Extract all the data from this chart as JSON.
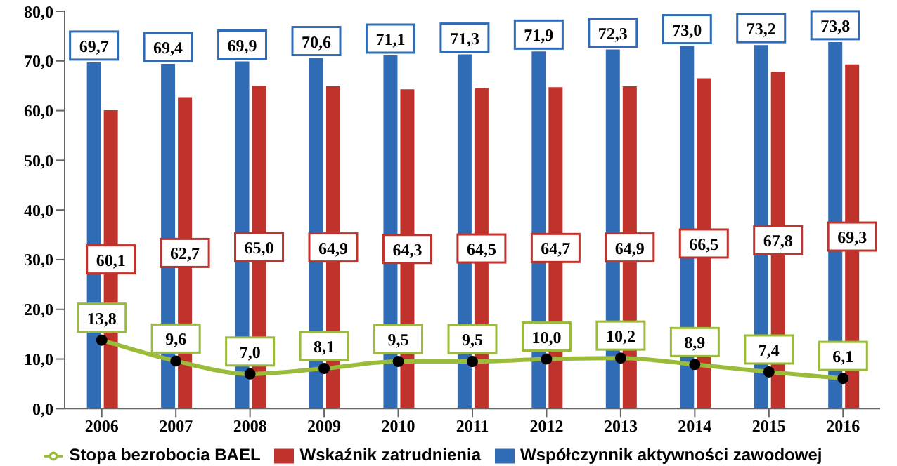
{
  "chart_data": {
    "type": "bar",
    "categories": [
      "2006",
      "2007",
      "2008",
      "2009",
      "2010",
      "2011",
      "2012",
      "2013",
      "2014",
      "2015",
      "2016"
    ],
    "series": [
      {
        "name": "Współczynnik aktywności zawodowej",
        "color": "#2f6cb5",
        "values": [
          69.7,
          69.4,
          69.9,
          70.6,
          71.1,
          71.3,
          71.9,
          72.3,
          73.0,
          73.2,
          73.8
        ],
        "value_labels": [
          "69,7",
          "69,4",
          "69,9",
          "70,6",
          "71,1",
          "71,3",
          "71,9",
          "72,3",
          "73,0",
          "73,2",
          "73,8"
        ]
      },
      {
        "name": "Wskaźnik zatrudnienia",
        "color": "#c0322c",
        "values": [
          60.1,
          62.7,
          65.0,
          64.9,
          64.3,
          64.5,
          64.7,
          64.9,
          66.5,
          67.8,
          69.3
        ],
        "value_labels": [
          "60,1",
          "62,7",
          "65,0",
          "64,9",
          "64,3",
          "64,5",
          "64,7",
          "64,9",
          "66,5",
          "67,8",
          "69,3"
        ]
      },
      {
        "name": "Stopa bezrobocia BAEL",
        "type": "line",
        "color": "#9bbb3b",
        "values": [
          13.8,
          9.6,
          7.0,
          8.1,
          9.5,
          9.5,
          10.0,
          10.2,
          8.9,
          7.4,
          6.1
        ],
        "value_labels": [
          "13,8",
          "9,6",
          "7,0",
          "8,1",
          "9,5",
          "9,5",
          "10,0",
          "10,2",
          "8,9",
          "7,4",
          "6,1"
        ]
      }
    ],
    "ylim": [
      0,
      80
    ],
    "yticks": [
      {
        "value": 0,
        "label": "0,0"
      },
      {
        "value": 10,
        "label": "10,0"
      },
      {
        "value": 20,
        "label": "20,0"
      },
      {
        "value": 30,
        "label": "30,0"
      },
      {
        "value": 40,
        "label": "40,0"
      },
      {
        "value": 50,
        "label": "50,0"
      },
      {
        "value": 60,
        "label": "60,0"
      },
      {
        "value": 70,
        "label": "70,0"
      },
      {
        "value": 80,
        "label": "80,0"
      }
    ],
    "legend": "bottom",
    "marker": "circle",
    "line_style": "solid"
  }
}
